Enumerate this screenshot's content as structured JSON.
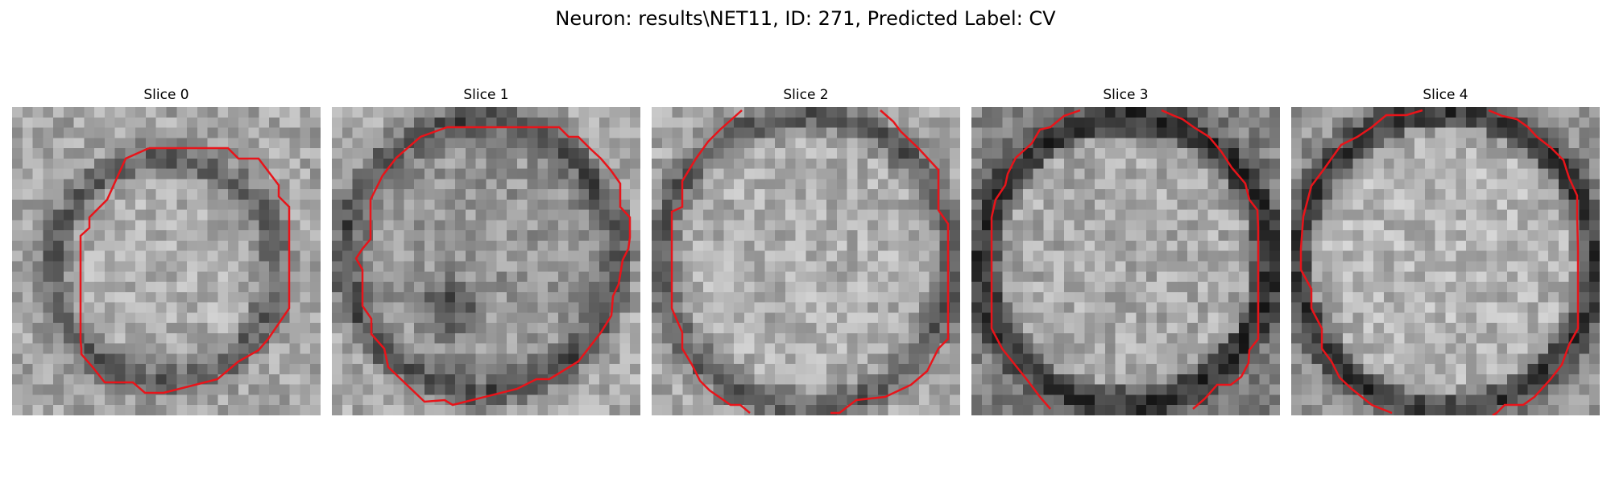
{
  "figure": {
    "title": "Neuron: results\\NET11, ID: 271, Predicted Label: CV",
    "overlay_color": "#e8141a",
    "colormap": "gray"
  },
  "panels": [
    {
      "title": "Slice 0"
    },
    {
      "title": "Slice 1"
    },
    {
      "title": "Slice 2"
    },
    {
      "title": "Slice 3"
    },
    {
      "title": "Slice 4"
    }
  ]
}
